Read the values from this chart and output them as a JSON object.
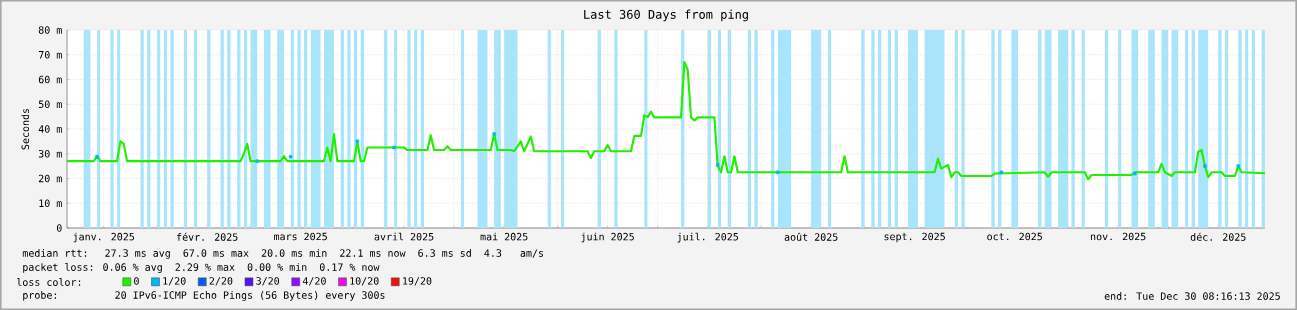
{
  "chart_data": {
    "type": "line",
    "title": "Last 360 Days from ping",
    "ylabel": "Seconds",
    "legend_title": "loss color:",
    "annotations": [
      "median rtt:  27.3 ms avg  67.0 ms max  20.0 ms min  22.1 ms now  6.3 ms sd  4.3   am/s",
      "packet loss: 0.06 % avg  2.29 % max  0.00 % min  0.17 % now",
      "probe:       20 IPv6-ICMP Echo Pings (56 Bytes) every 300s",
      "end: Tue Dec 30 08:16:13 2025"
    ],
    "xlim": [
      "2025-01-05",
      "2025-12-30"
    ],
    "xticks": [
      {
        "value": "2025-01-16",
        "label": "janv. 2025"
      },
      {
        "value": "2025-02-01",
        "label": null
      },
      {
        "value": "2025-02-16",
        "label": "févr. 2025"
      },
      {
        "value": "2025-03-01",
        "label": null
      },
      {
        "value": "2025-03-16",
        "label": "mars 2025"
      },
      {
        "value": "2025-04-01",
        "label": null
      },
      {
        "value": "2025-04-16",
        "label": "avril 2025"
      },
      {
        "value": "2025-05-01",
        "label": null
      },
      {
        "value": "2025-05-16",
        "label": "mai 2025"
      },
      {
        "value": "2025-06-01",
        "label": null
      },
      {
        "value": "2025-06-16",
        "label": "juin 2025"
      },
      {
        "value": "2025-07-01",
        "label": null
      },
      {
        "value": "2025-07-16",
        "label": "juil. 2025"
      },
      {
        "value": "2025-08-01",
        "label": null
      },
      {
        "value": "2025-08-16",
        "label": "août 2025"
      },
      {
        "value": "2025-09-01",
        "label": null
      },
      {
        "value": "2025-09-16",
        "label": "sept. 2025"
      },
      {
        "value": "2025-10-01",
        "label": null
      },
      {
        "value": "2025-10-16",
        "label": "oct. 2025"
      },
      {
        "value": "2025-11-01",
        "label": null
      },
      {
        "value": "2025-11-16",
        "label": "nov. 2025"
      },
      {
        "value": "2025-12-01",
        "label": null
      },
      {
        "value": "2025-12-16",
        "label": "déc. 2025"
      }
    ],
    "ylim": [
      0,
      80
    ],
    "yticks": [
      0,
      {
        "value": 10,
        "label": "10 m"
      },
      {
        "value": 20,
        "label": "20 m"
      },
      {
        "value": 30,
        "label": "30 m"
      },
      {
        "value": 40,
        "label": "40 m"
      },
      {
        "value": 50,
        "label": "50 m"
      },
      {
        "value": 60,
        "label": "60 m"
      },
      {
        "value": 70,
        "label": "70 m"
      },
      {
        "value": 80,
        "label": "80 m"
      }
    ],
    "grid": true,
    "legend": "bottom",
    "series": [
      {
        "name": "0",
        "color": "#20f000",
        "x": [
          "2025-01-05",
          "2025-01-13",
          "2025-01-14",
          "2025-01-15",
          "2025-01-20",
          "2025-01-21",
          "2025-01-22",
          "2025-01-23",
          "2025-02-26",
          "2025-02-27",
          "2025-02-28",
          "2025-03-01",
          "2025-03-10",
          "2025-03-11",
          "2025-03-12",
          "2025-03-23",
          "2025-03-24",
          "2025-03-25",
          "2025-03-26",
          "2025-03-27",
          "2025-04-01",
          "2025-04-02",
          "2025-04-03",
          "2025-04-04",
          "2025-04-05",
          "2025-04-16",
          "2025-04-17",
          "2025-04-23",
          "2025-04-24",
          "2025-04-25",
          "2025-04-28",
          "2025-04-29",
          "2025-04-30",
          "2025-05-12",
          "2025-05-13",
          "2025-05-14",
          "2025-05-18",
          "2025-05-19",
          "2025-05-21",
          "2025-05-22",
          "2025-05-24",
          "2025-05-25",
          "2025-06-10",
          "2025-06-11",
          "2025-06-12",
          "2025-06-15",
          "2025-06-16",
          "2025-06-17",
          "2025-06-23",
          "2025-06-24",
          "2025-06-26",
          "2025-06-27",
          "2025-06-28",
          "2025-06-29",
          "2025-06-30",
          "2025-07-08",
          "2025-07-09",
          "2025-07-10",
          "2025-07-11",
          "2025-07-12",
          "2025-07-13",
          "2025-07-18",
          "2025-07-19",
          "2025-07-20",
          "2025-07-21",
          "2025-07-22",
          "2025-07-23",
          "2025-07-24",
          "2025-07-25",
          "2025-08-25",
          "2025-08-26",
          "2025-08-27",
          "2025-09-22",
          "2025-09-23",
          "2025-09-24",
          "2025-09-26",
          "2025-09-27",
          "2025-09-28",
          "2025-09-29",
          "2025-09-30",
          "2025-10-09",
          "2025-10-10",
          "2025-10-25",
          "2025-10-26",
          "2025-10-27",
          "2025-11-06",
          "2025-11-07",
          "2025-11-08",
          "2025-11-20",
          "2025-11-21",
          "2025-11-28",
          "2025-11-29",
          "2025-11-30",
          "2025-12-02",
          "2025-12-03",
          "2025-12-09",
          "2025-12-10",
          "2025-12-11",
          "2025-12-12",
          "2025-12-13",
          "2025-12-14",
          "2025-12-17",
          "2025-12-18",
          "2025-12-21",
          "2025-12-22",
          "2025-12-23",
          "2025-12-30"
        ],
        "values": [
          27,
          27,
          29,
          27,
          27,
          35,
          34,
          27,
          27,
          30,
          34,
          27,
          27,
          29,
          27,
          27,
          32.5,
          27,
          38,
          27,
          27,
          35,
          27,
          27,
          32.5,
          32.5,
          31.5,
          31.5,
          37.5,
          31.5,
          31.5,
          33,
          31.5,
          31.5,
          38,
          31.5,
          31.5,
          31,
          35,
          31,
          37,
          31,
          31,
          28.3,
          31,
          31,
          33.5,
          31,
          31,
          37.2,
          37.2,
          45.5,
          44.8,
          47,
          44.7,
          44.7,
          67,
          64,
          44.7,
          43.5,
          44.7,
          44.7,
          25,
          22.5,
          29,
          22.5,
          22.5,
          29,
          22.5,
          22.5,
          29,
          22.5,
          22.5,
          28,
          24,
          25.5,
          20.5,
          22.5,
          22.5,
          21,
          21,
          22,
          22.5,
          20.7,
          22.5,
          22.5,
          19.7,
          21.4,
          21.4,
          22.5,
          22.5,
          25.9,
          22.5,
          21,
          22.5,
          22.5,
          30.8,
          31.5,
          25,
          20.5,
          22.5,
          22.5,
          21,
          21,
          25,
          22.5,
          22.1
        ]
      },
      {
        "name": "1/20",
        "type": "scatter",
        "marker": "square",
        "color": "#00b8f0",
        "x": [
          "2025-01-14",
          "2025-03-03",
          "2025-03-13",
          "2025-04-02",
          "2025-04-13",
          "2025-05-13",
          "2025-07-19",
          "2025-08-06",
          "2025-10-12",
          "2025-11-21",
          "2025-12-12",
          "2025-12-22"
        ],
        "values": [
          28.8,
          27,
          28.8,
          35,
          32.5,
          38,
          25.5,
          22.5,
          22.5,
          22,
          25,
          25
        ]
      },
      {
        "name": "2/20",
        "type": "scatter",
        "marker": "square",
        "color": "#0a5cf5"
      },
      {
        "name": "3/20",
        "type": "scatter",
        "marker": "square",
        "color": "#5a10f5"
      },
      {
        "name": "4/20",
        "type": "scatter",
        "marker": "square",
        "color": "#9010f5"
      },
      {
        "name": "10/20",
        "type": "scatter",
        "marker": "square",
        "color": "#e010e8"
      },
      {
        "name": "19/20",
        "type": "scatter",
        "marker": "square",
        "color": "#f01010"
      }
    ],
    "bands": [
      {
        "axis": "x",
        "from": "2025-01-10",
        "to": "2025-01-11",
        "color": "#a9e5fa"
      },
      {
        "axis": "x",
        "from": "2025-01-11",
        "to": "2025-01-12",
        "color": "#a9e5fa"
      },
      {
        "axis": "x",
        "from": "2025-01-14",
        "to": "2025-01-15",
        "color": "#a9e5fa"
      },
      {
        "axis": "x",
        "from": "2025-01-18",
        "to": "2025-01-19",
        "color": "#a9e5fa"
      },
      {
        "axis": "x",
        "from": "2025-01-20",
        "to": "2025-01-21",
        "color": "#a9e5fa"
      },
      {
        "axis": "x",
        "from": "2025-01-27",
        "to": "2025-01-28",
        "color": "#a9e5fa"
      },
      {
        "axis": "x",
        "from": "2025-01-29",
        "to": "2025-01-30",
        "color": "#a9e5fa"
      },
      {
        "axis": "x",
        "from": "2025-02-01",
        "to": "2025-02-02",
        "color": "#a9e5fa"
      },
      {
        "axis": "x",
        "from": "2025-02-03",
        "to": "2025-02-04",
        "color": "#a9e5fa"
      },
      {
        "axis": "x",
        "from": "2025-02-05",
        "to": "2025-02-06",
        "color": "#a9e5fa"
      },
      {
        "axis": "x",
        "from": "2025-02-09",
        "to": "2025-02-10",
        "color": "#a9e5fa"
      },
      {
        "axis": "x",
        "from": "2025-02-12",
        "to": "2025-02-13",
        "color": "#a9e5fa"
      },
      {
        "axis": "x",
        "from": "2025-02-16",
        "to": "2025-02-17",
        "color": "#a9e5fa"
      },
      {
        "axis": "x",
        "from": "2025-02-20",
        "to": "2025-02-21",
        "color": "#a9e5fa"
      },
      {
        "axis": "x",
        "from": "2025-02-22",
        "to": "2025-02-23",
        "color": "#a9e5fa"
      },
      {
        "axis": "x",
        "from": "2025-02-25",
        "to": "2025-02-26",
        "color": "#a9e5fa"
      },
      {
        "axis": "x",
        "from": "2025-02-27",
        "to": "2025-02-28",
        "color": "#a9e5fa"
      },
      {
        "axis": "x",
        "from": "2025-03-01",
        "to": "2025-03-03",
        "color": "#a9e5fa"
      },
      {
        "axis": "x",
        "from": "2025-03-05",
        "to": "2025-03-07",
        "color": "#a9e5fa"
      },
      {
        "axis": "x",
        "from": "2025-03-09",
        "to": "2025-03-11",
        "color": "#a9e5fa"
      },
      {
        "axis": "x",
        "from": "2025-03-13",
        "to": "2025-03-14",
        "color": "#a9e5fa"
      },
      {
        "axis": "x",
        "from": "2025-03-15",
        "to": "2025-03-16",
        "color": "#a9e5fa"
      },
      {
        "axis": "x",
        "from": "2025-03-17",
        "to": "2025-03-18",
        "color": "#a9e5fa"
      },
      {
        "axis": "x",
        "from": "2025-03-19",
        "to": "2025-03-22",
        "color": "#a9e5fa"
      },
      {
        "axis": "x",
        "from": "2025-03-23",
        "to": "2025-03-26",
        "color": "#a9e5fa"
      },
      {
        "axis": "x",
        "from": "2025-03-28",
        "to": "2025-03-29",
        "color": "#a9e5fa"
      },
      {
        "axis": "x",
        "from": "2025-03-30",
        "to": "2025-03-31",
        "color": "#a9e5fa"
      },
      {
        "axis": "x",
        "from": "2025-04-01",
        "to": "2025-04-02",
        "color": "#a9e5fa"
      },
      {
        "axis": "x",
        "from": "2025-04-03",
        "to": "2025-04-04",
        "color": "#a9e5fa"
      },
      {
        "axis": "x",
        "from": "2025-04-10",
        "to": "2025-04-11",
        "color": "#a9e5fa"
      },
      {
        "axis": "x",
        "from": "2025-04-13",
        "to": "2025-04-14",
        "color": "#a9e5fa"
      },
      {
        "axis": "x",
        "from": "2025-04-17",
        "to": "2025-04-18",
        "color": "#a9e5fa"
      },
      {
        "axis": "x",
        "from": "2025-04-19",
        "to": "2025-04-20",
        "color": "#a9e5fa"
      },
      {
        "axis": "x",
        "from": "2025-04-21",
        "to": "2025-04-22",
        "color": "#a9e5fa"
      },
      {
        "axis": "x",
        "from": "2025-05-03",
        "to": "2025-05-04",
        "color": "#a9e5fa"
      },
      {
        "axis": "x",
        "from": "2025-05-08",
        "to": "2025-05-11",
        "color": "#a9e5fa"
      },
      {
        "axis": "x",
        "from": "2025-05-13",
        "to": "2025-05-15",
        "color": "#a9e5fa"
      },
      {
        "axis": "x",
        "from": "2025-05-16",
        "to": "2025-05-20",
        "color": "#a9e5fa"
      },
      {
        "axis": "x",
        "from": "2025-05-29",
        "to": "2025-05-30",
        "color": "#a9e5fa"
      },
      {
        "axis": "x",
        "from": "2025-06-02",
        "to": "2025-06-03",
        "color": "#a9e5fa"
      },
      {
        "axis": "x",
        "from": "2025-06-13",
        "to": "2025-06-14",
        "color": "#a9e5fa"
      },
      {
        "axis": "x",
        "from": "2025-06-18",
        "to": "2025-06-19",
        "color": "#a9e5fa"
      },
      {
        "axis": "x",
        "from": "2025-06-27",
        "to": "2025-06-28",
        "color": "#a9e5fa"
      },
      {
        "axis": "x",
        "from": "2025-07-08",
        "to": "2025-07-09",
        "color": "#a9e5fa"
      },
      {
        "axis": "x",
        "from": "2025-07-16",
        "to": "2025-07-17",
        "color": "#a9e5fa"
      },
      {
        "axis": "x",
        "from": "2025-07-19",
        "to": "2025-07-20",
        "color": "#a9e5fa"
      },
      {
        "axis": "x",
        "from": "2025-07-22",
        "to": "2025-07-23",
        "color": "#a9e5fa"
      },
      {
        "axis": "x",
        "from": "2025-07-28",
        "to": "2025-07-29",
        "color": "#a9e5fa"
      },
      {
        "axis": "x",
        "from": "2025-07-30",
        "to": "2025-07-31",
        "color": "#a9e5fa"
      },
      {
        "axis": "x",
        "from": "2025-08-04",
        "to": "2025-08-05",
        "color": "#a9e5fa"
      },
      {
        "axis": "x",
        "from": "2025-08-06",
        "to": "2025-08-10",
        "color": "#a9e5fa"
      },
      {
        "axis": "x",
        "from": "2025-08-16",
        "to": "2025-08-19",
        "color": "#a9e5fa"
      },
      {
        "axis": "x",
        "from": "2025-08-21",
        "to": "2025-08-22",
        "color": "#a9e5fa"
      },
      {
        "axis": "x",
        "from": "2025-08-31",
        "to": "2025-09-01",
        "color": "#a9e5fa"
      },
      {
        "axis": "x",
        "from": "2025-09-03",
        "to": "2025-09-04",
        "color": "#a9e5fa"
      },
      {
        "axis": "x",
        "from": "2025-09-05",
        "to": "2025-09-06",
        "color": "#a9e5fa"
      },
      {
        "axis": "x",
        "from": "2025-09-08",
        "to": "2025-09-09",
        "color": "#a9e5fa"
      },
      {
        "axis": "x",
        "from": "2025-09-10",
        "to": "2025-09-11",
        "color": "#a9e5fa"
      },
      {
        "axis": "x",
        "from": "2025-09-14",
        "to": "2025-09-17",
        "color": "#a9e5fa"
      },
      {
        "axis": "x",
        "from": "2025-09-19",
        "to": "2025-09-25",
        "color": "#a9e5fa"
      },
      {
        "axis": "x",
        "from": "2025-09-28",
        "to": "2025-09-29",
        "color": "#a9e5fa"
      },
      {
        "axis": "x",
        "from": "2025-09-30",
        "to": "2025-10-01",
        "color": "#a9e5fa"
      },
      {
        "axis": "x",
        "from": "2025-10-09",
        "to": "2025-10-10",
        "color": "#a9e5fa"
      },
      {
        "axis": "x",
        "from": "2025-10-11",
        "to": "2025-10-12",
        "color": "#a9e5fa"
      },
      {
        "axis": "x",
        "from": "2025-10-15",
        "to": "2025-10-17",
        "color": "#a9e5fa"
      },
      {
        "axis": "x",
        "from": "2025-10-23",
        "to": "2025-10-24",
        "color": "#a9e5fa"
      },
      {
        "axis": "x",
        "from": "2025-10-25",
        "to": "2025-10-27",
        "color": "#a9e5fa"
      },
      {
        "axis": "x",
        "from": "2025-10-29",
        "to": "2025-11-01",
        "color": "#a9e5fa"
      },
      {
        "axis": "x",
        "from": "2025-11-02",
        "to": "2025-11-03",
        "color": "#a9e5fa"
      },
      {
        "axis": "x",
        "from": "2025-11-05",
        "to": "2025-11-06",
        "color": "#a9e5fa"
      },
      {
        "axis": "x",
        "from": "2025-11-12",
        "to": "2025-11-13",
        "color": "#a9e5fa"
      },
      {
        "axis": "x",
        "from": "2025-11-16",
        "to": "2025-11-17",
        "color": "#a9e5fa"
      },
      {
        "axis": "x",
        "from": "2025-11-20",
        "to": "2025-11-22",
        "color": "#a9e5fa"
      },
      {
        "axis": "x",
        "from": "2025-11-25",
        "to": "2025-11-27",
        "color": "#a9e5fa"
      },
      {
        "axis": "x",
        "from": "2025-11-29",
        "to": "2025-12-01",
        "color": "#a9e5fa"
      },
      {
        "axis": "x",
        "from": "2025-12-02",
        "to": "2025-12-04",
        "color": "#a9e5fa"
      },
      {
        "axis": "x",
        "from": "2025-12-06",
        "to": "2025-12-07",
        "color": "#a9e5fa"
      },
      {
        "axis": "x",
        "from": "2025-12-08",
        "to": "2025-12-09",
        "color": "#a9e5fa"
      },
      {
        "axis": "x",
        "from": "2025-12-10",
        "to": "2025-12-13",
        "color": "#a9e5fa"
      },
      {
        "axis": "x",
        "from": "2025-12-16",
        "to": "2025-12-17",
        "color": "#a9e5fa"
      },
      {
        "axis": "x",
        "from": "2025-12-18",
        "to": "2025-12-19",
        "color": "#a9e5fa"
      },
      {
        "axis": "x",
        "from": "2025-12-22",
        "to": "2025-12-23",
        "color": "#a9e5fa"
      },
      {
        "axis": "x",
        "from": "2025-12-24",
        "to": "2025-12-25",
        "color": "#a9e5fa"
      },
      {
        "axis": "x",
        "from": "2025-12-26",
        "to": "2025-12-27",
        "color": "#a9e5fa"
      },
      {
        "axis": "x",
        "from": "2025-12-29",
        "to": "2025-12-30",
        "color": "#a9e5fa"
      }
    ]
  }
}
